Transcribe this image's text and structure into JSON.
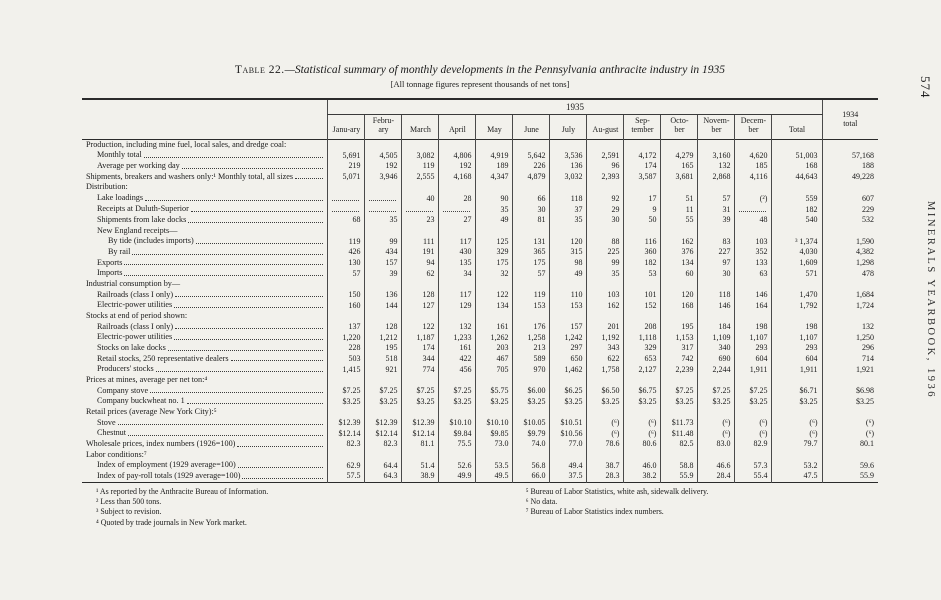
{
  "page": {
    "page_number": "574",
    "side_label": "MINERALS YEARBOOK, 1936"
  },
  "table": {
    "title_prefix": "Table 22.",
    "title_rest": "—Statistical summary of monthly developments in the Pennsylvania anthracite industry in 1935",
    "subtitle": "[All tonnage figures represent thousands of net tons]",
    "year_group_label": "1935",
    "col_1934_label": "1934 total",
    "month_columns": [
      "Janu-ary",
      "Febru-ary",
      "March",
      "April",
      "May",
      "June",
      "July",
      "Au-gust",
      "Sep-tember",
      "Octo-ber",
      "Novem-ber",
      "Decem-ber",
      "Total"
    ],
    "rows": [
      {
        "type": "section",
        "indent": 0,
        "label": "Production, including mine fuel, local sales, and dredge coal:"
      },
      {
        "type": "data",
        "indent": 1,
        "label": "Monthly total",
        "values": [
          "5,691",
          "4,505",
          "3,082",
          "4,806",
          "4,919",
          "5,642",
          "3,536",
          "2,591",
          "4,172",
          "4,279",
          "3,160",
          "4,620",
          "51,003",
          "57,168"
        ]
      },
      {
        "type": "data",
        "indent": 1,
        "label": "Average per working day",
        "values": [
          "219",
          "192",
          "119",
          "192",
          "189",
          "226",
          "136",
          "96",
          "174",
          "165",
          "132",
          "185",
          "168",
          "188"
        ]
      },
      {
        "type": "data",
        "indent": 0,
        "label": "Shipments, breakers and washers only:¹ Monthly total, all sizes",
        "values": [
          "5,071",
          "3,946",
          "2,555",
          "4,168",
          "4,347",
          "4,879",
          "3,032",
          "2,393",
          "3,587",
          "3,681",
          "2,868",
          "4,116",
          "44,643",
          "49,228"
        ]
      },
      {
        "type": "section",
        "indent": 0,
        "label": "Distribution:"
      },
      {
        "type": "data",
        "indent": 1,
        "label": "Lake loadings",
        "values": [
          "",
          "",
          "40",
          "28",
          "90",
          "66",
          "118",
          "92",
          "17",
          "51",
          "57",
          "(²)",
          "559",
          "607"
        ]
      },
      {
        "type": "data",
        "indent": 1,
        "label": "Receipts at Duluth-Superior",
        "values": [
          "",
          "",
          "",
          "",
          "35",
          "30",
          "37",
          "29",
          "9",
          "11",
          "31",
          "",
          "182",
          "229"
        ]
      },
      {
        "type": "data",
        "indent": 1,
        "label": "Shipments from lake docks",
        "values": [
          "68",
          "35",
          "23",
          "27",
          "49",
          "81",
          "35",
          "30",
          "50",
          "55",
          "39",
          "48",
          "540",
          "532"
        ]
      },
      {
        "type": "section",
        "indent": 1,
        "label": "New England receipts—"
      },
      {
        "type": "data",
        "indent": 2,
        "label": "By tide (includes imports)",
        "values": [
          "119",
          "99",
          "111",
          "117",
          "125",
          "131",
          "120",
          "88",
          "116",
          "162",
          "83",
          "103",
          "³ 1,374",
          "1,590"
        ]
      },
      {
        "type": "data",
        "indent": 2,
        "label": "By rail",
        "values": [
          "426",
          "434",
          "191",
          "430",
          "329",
          "365",
          "315",
          "225",
          "360",
          "376",
          "227",
          "352",
          "4,030",
          "4,382"
        ]
      },
      {
        "type": "data",
        "indent": 1,
        "label": "Exports",
        "values": [
          "130",
          "157",
          "94",
          "135",
          "175",
          "175",
          "98",
          "99",
          "182",
          "134",
          "97",
          "133",
          "1,609",
          "1,298"
        ]
      },
      {
        "type": "data",
        "indent": 1,
        "label": "Imports",
        "values": [
          "57",
          "39",
          "62",
          "34",
          "32",
          "57",
          "49",
          "35",
          "53",
          "60",
          "30",
          "63",
          "571",
          "478"
        ]
      },
      {
        "type": "section",
        "indent": 0,
        "label": "Industrial consumption by—"
      },
      {
        "type": "data",
        "indent": 1,
        "label": "Railroads (class I only)",
        "values": [
          "150",
          "136",
          "128",
          "117",
          "122",
          "119",
          "110",
          "103",
          "101",
          "120",
          "118",
          "146",
          "1,470",
          "1,684"
        ]
      },
      {
        "type": "data",
        "indent": 1,
        "label": "Electric-power utilities",
        "values": [
          "160",
          "144",
          "127",
          "129",
          "134",
          "153",
          "153",
          "162",
          "152",
          "168",
          "146",
          "164",
          "1,792",
          "1,724"
        ]
      },
      {
        "type": "section",
        "indent": 0,
        "label": "Stocks at end of period shown:"
      },
      {
        "type": "data",
        "indent": 1,
        "label": "Railroads (class I only)",
        "values": [
          "137",
          "128",
          "122",
          "132",
          "161",
          "176",
          "157",
          "201",
          "208",
          "195",
          "184",
          "198",
          "198",
          "132"
        ]
      },
      {
        "type": "data",
        "indent": 1,
        "label": "Electric-power utilities",
        "values": [
          "1,220",
          "1,212",
          "1,187",
          "1,233",
          "1,262",
          "1,258",
          "1,242",
          "1,192",
          "1,118",
          "1,153",
          "1,109",
          "1,107",
          "1,107",
          "1,250"
        ]
      },
      {
        "type": "data",
        "indent": 1,
        "label": "Stocks on lake docks",
        "values": [
          "228",
          "195",
          "174",
          "161",
          "203",
          "213",
          "297",
          "343",
          "329",
          "317",
          "340",
          "293",
          "293",
          "296"
        ]
      },
      {
        "type": "data",
        "indent": 1,
        "label": "Retail stocks, 250 representative dealers",
        "values": [
          "503",
          "518",
          "344",
          "422",
          "467",
          "589",
          "650",
          "622",
          "653",
          "742",
          "690",
          "604",
          "604",
          "714"
        ]
      },
      {
        "type": "data",
        "indent": 1,
        "label": "Producers' stocks",
        "values": [
          "1,415",
          "921",
          "774",
          "456",
          "705",
          "970",
          "1,462",
          "1,758",
          "2,127",
          "2,239",
          "2,244",
          "1,911",
          "1,911",
          "1,921"
        ]
      },
      {
        "type": "section",
        "indent": 0,
        "label": "Prices at mines, average per net ton:⁴"
      },
      {
        "type": "data",
        "indent": 1,
        "label": "Company stove",
        "values": [
          "$7.25",
          "$7.25",
          "$7.25",
          "$7.25",
          "$5.75",
          "$6.00",
          "$6.25",
          "$6.50",
          "$6.75",
          "$7.25",
          "$7.25",
          "$7.25",
          "$6.71",
          "$6.98"
        ]
      },
      {
        "type": "data",
        "indent": 1,
        "label": "Company buckwheat no. 1",
        "values": [
          "$3.25",
          "$3.25",
          "$3.25",
          "$3.25",
          "$3.25",
          "$3.25",
          "$3.25",
          "$3.25",
          "$3.25",
          "$3.25",
          "$3.25",
          "$3.25",
          "$3.25",
          "$3.25"
        ]
      },
      {
        "type": "section",
        "indent": 0,
        "label": "Retail prices (average New York City):⁵"
      },
      {
        "type": "data",
        "indent": 1,
        "label": "Stove",
        "values": [
          "$12.39",
          "$12.39",
          "$12.39",
          "$10.10",
          "$10.10",
          "$10.05",
          "$10.51",
          "(⁶)",
          "(⁶)",
          "$11.73",
          "(⁶)",
          "(⁶)",
          "(⁶)",
          "(⁶)"
        ]
      },
      {
        "type": "data",
        "indent": 1,
        "label": "Chestnut",
        "values": [
          "$12.14",
          "$12.14",
          "$12.14",
          "$9.84",
          "$9.85",
          "$9.79",
          "$10.56",
          "(⁶)",
          "(⁶)",
          "$11.48",
          "(⁶)",
          "(⁶)",
          "(⁶)",
          "(⁶)"
        ]
      },
      {
        "type": "data",
        "indent": 0,
        "label": "Wholesale prices, index numbers (1926=100)",
        "values": [
          "82.3",
          "82.3",
          "81.1",
          "75.5",
          "73.0",
          "74.0",
          "77.0",
          "78.6",
          "80.6",
          "82.5",
          "83.0",
          "82.9",
          "79.7",
          "80.1"
        ]
      },
      {
        "type": "section",
        "indent": 0,
        "label": "Labor conditions:⁷"
      },
      {
        "type": "data",
        "indent": 1,
        "label": "Index of employment (1929 average=100)",
        "values": [
          "62.9",
          "64.4",
          "51.4",
          "52.6",
          "53.5",
          "56.8",
          "49.4",
          "38.7",
          "46.0",
          "58.8",
          "46.6",
          "57.3",
          "53.2",
          "59.6"
        ]
      },
      {
        "type": "data",
        "indent": 1,
        "label": "Index of pay-roll totals (1929 average=100)",
        "values": [
          "57.5",
          "64.3",
          "38.9",
          "49.9",
          "49.5",
          "66.0",
          "37.5",
          "28.3",
          "38.2",
          "55.9",
          "28.4",
          "55.4",
          "47.5",
          "55.9"
        ]
      }
    ]
  },
  "footnotes": {
    "left": [
      "¹ As reported by the Anthracite Bureau of Information.",
      "² Less than 500 tons.",
      "³ Subject to revision.",
      "⁴ Quoted by trade journals in New York market."
    ],
    "right": [
      "⁵ Bureau of Labor Statistics, white ash, sidewalk delivery.",
      "⁶ No data.",
      "⁷ Bureau of Labor Statistics index numbers."
    ]
  }
}
